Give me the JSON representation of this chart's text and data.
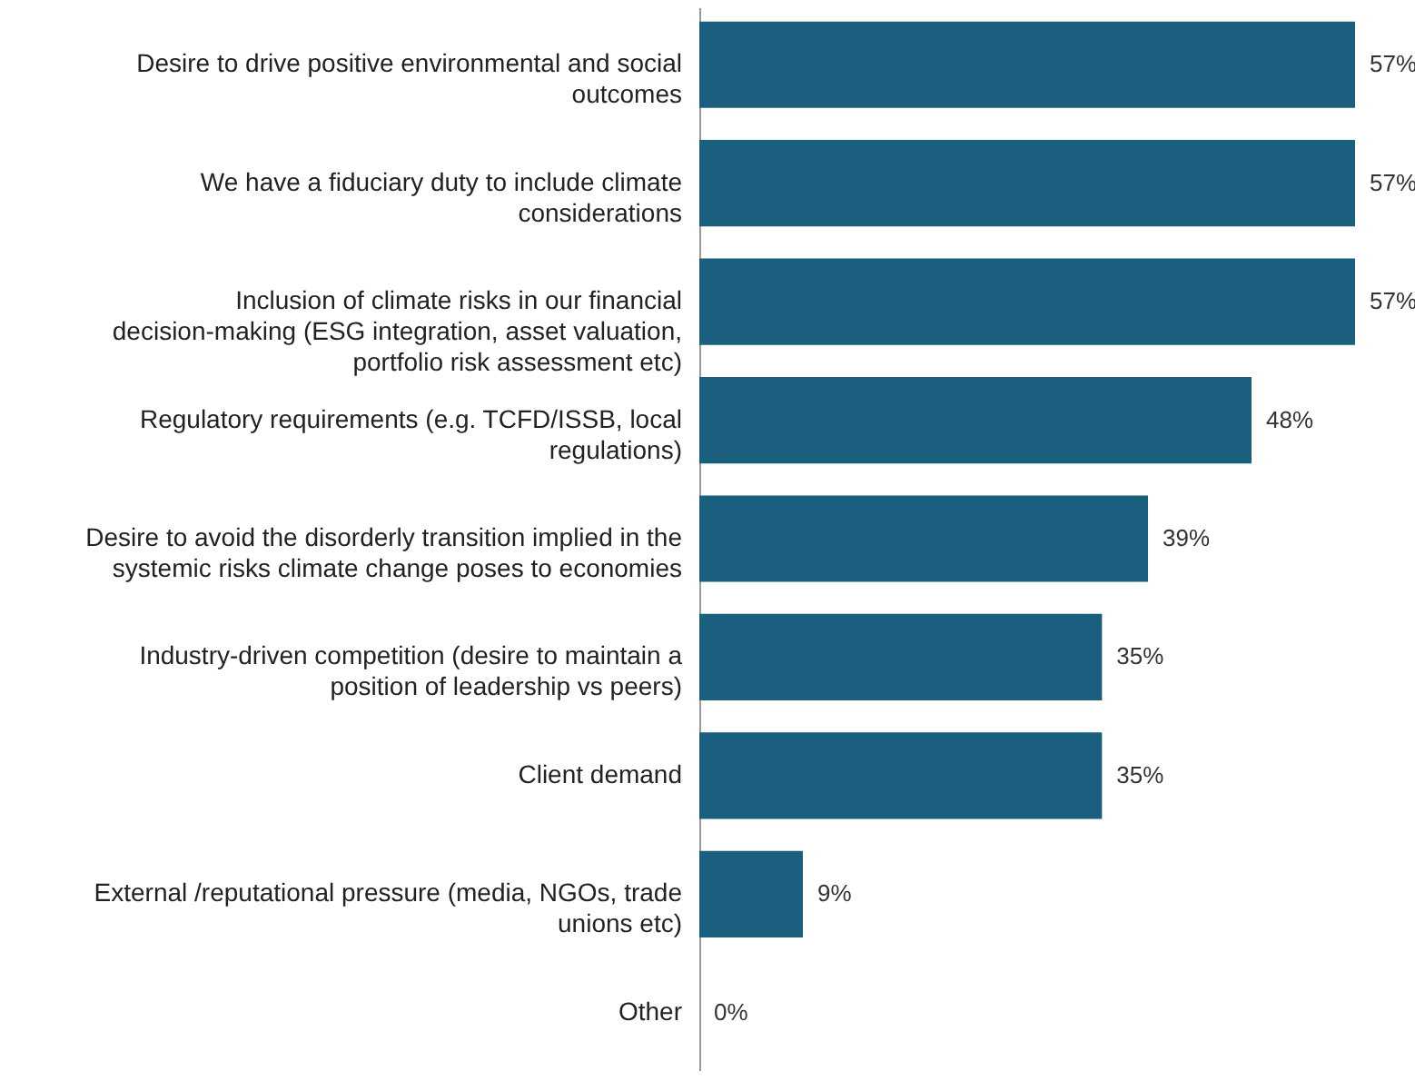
{
  "chart_data": {
    "type": "bar",
    "orientation": "horizontal",
    "color": "#1a5f7e",
    "categories": [
      "Desire to drive positive environmental and social outcomes",
      "We have a fiduciary duty to include climate considerations",
      "Inclusion of climate risks in our financial decision-making (ESG integration, asset valuation, portfolio risk assessment etc)",
      "Regulatory requirements (e.g. TCFD/ISSB, local regulations)",
      "Desire to avoid the disorderly transition implied in the systemic risks climate change poses to economies",
      "Industry-driven competition (desire to maintain a position of leadership vs peers)",
      "Client demand",
      "External /reputational pressure (media, NGOs, trade unions etc)",
      "Other"
    ],
    "values": [
      57,
      57,
      57,
      48,
      39,
      35,
      35,
      9,
      0
    ],
    "value_labels": [
      "57%",
      "57%",
      "57%",
      "48%",
      "39%",
      "35%",
      "35%",
      "9%",
      "0%"
    ],
    "grid": false
  }
}
